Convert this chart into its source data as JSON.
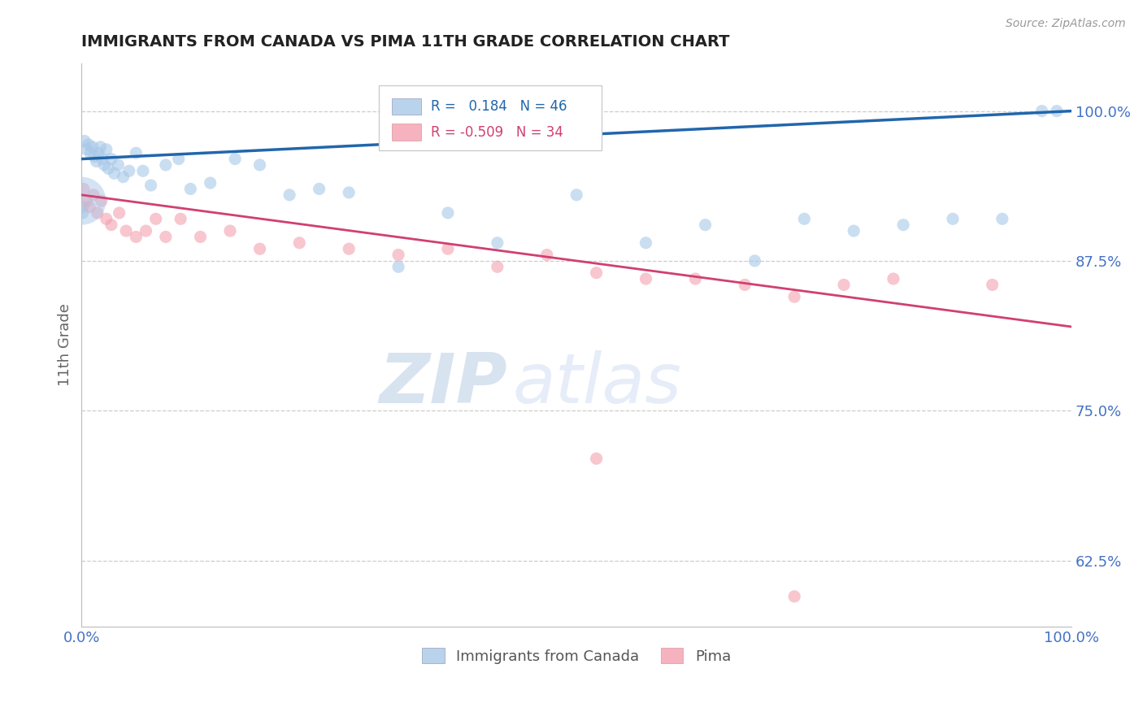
{
  "title": "IMMIGRANTS FROM CANADA VS PIMA 11TH GRADE CORRELATION CHART",
  "source_text": "Source: ZipAtlas.com",
  "ylabel": "11th Grade",
  "xlim": [
    0.0,
    100.0
  ],
  "ylim": [
    57.0,
    104.0
  ],
  "yticks": [
    62.5,
    75.0,
    87.5,
    100.0
  ],
  "xticks": [
    0.0,
    100.0
  ],
  "xtick_labels": [
    "0.0%",
    "100.0%"
  ],
  "ytick_labels": [
    "62.5%",
    "75.0%",
    "87.5%",
    "100.0%"
  ],
  "blue_R": 0.184,
  "blue_N": 46,
  "pink_R": -0.509,
  "pink_N": 34,
  "legend_label_blue": "Immigrants from Canada",
  "legend_label_pink": "Pima",
  "blue_color": "#a8c8e8",
  "pink_color": "#f4a0b0",
  "blue_line_color": "#2166ac",
  "pink_line_color": "#d04070",
  "blue_scatter": [
    [
      0.3,
      97.5
    ],
    [
      0.5,
      96.8
    ],
    [
      0.7,
      97.2
    ],
    [
      0.9,
      96.5
    ],
    [
      1.1,
      97.0
    ],
    [
      1.3,
      96.2
    ],
    [
      1.5,
      95.8
    ],
    [
      1.7,
      96.5
    ],
    [
      1.9,
      97.0
    ],
    [
      2.1,
      96.0
    ],
    [
      2.3,
      95.5
    ],
    [
      2.5,
      96.8
    ],
    [
      2.7,
      95.2
    ],
    [
      3.0,
      96.0
    ],
    [
      3.3,
      94.8
    ],
    [
      3.7,
      95.5
    ],
    [
      4.2,
      94.5
    ],
    [
      4.8,
      95.0
    ],
    [
      5.5,
      96.5
    ],
    [
      6.2,
      95.0
    ],
    [
      7.0,
      93.8
    ],
    [
      8.5,
      95.5
    ],
    [
      9.8,
      96.0
    ],
    [
      11.0,
      93.5
    ],
    [
      13.0,
      94.0
    ],
    [
      15.5,
      96.0
    ],
    [
      18.0,
      95.5
    ],
    [
      21.0,
      93.0
    ],
    [
      24.0,
      93.5
    ],
    [
      27.0,
      93.2
    ],
    [
      32.0,
      87.0
    ],
    [
      37.0,
      91.5
    ],
    [
      42.0,
      89.0
    ],
    [
      50.0,
      93.0
    ],
    [
      57.0,
      89.0
    ],
    [
      63.0,
      90.5
    ],
    [
      68.0,
      87.5
    ],
    [
      73.0,
      91.0
    ],
    [
      78.0,
      90.0
    ],
    [
      83.0,
      90.5
    ],
    [
      88.0,
      91.0
    ],
    [
      93.0,
      91.0
    ],
    [
      97.0,
      100.0
    ],
    [
      98.5,
      100.0
    ],
    [
      0.1,
      92.0
    ],
    [
      0.1,
      91.5
    ]
  ],
  "pink_scatter": [
    [
      0.2,
      93.5
    ],
    [
      0.5,
      92.5
    ],
    [
      0.8,
      92.0
    ],
    [
      1.2,
      93.0
    ],
    [
      1.6,
      91.5
    ],
    [
      2.0,
      92.5
    ],
    [
      2.5,
      91.0
    ],
    [
      3.0,
      90.5
    ],
    [
      3.8,
      91.5
    ],
    [
      4.5,
      90.0
    ],
    [
      5.5,
      89.5
    ],
    [
      6.5,
      90.0
    ],
    [
      7.5,
      91.0
    ],
    [
      8.5,
      89.5
    ],
    [
      10.0,
      91.0
    ],
    [
      12.0,
      89.5
    ],
    [
      15.0,
      90.0
    ],
    [
      18.0,
      88.5
    ],
    [
      22.0,
      89.0
    ],
    [
      27.0,
      88.5
    ],
    [
      32.0,
      88.0
    ],
    [
      37.0,
      88.5
    ],
    [
      42.0,
      87.0
    ],
    [
      47.0,
      88.0
    ],
    [
      52.0,
      86.5
    ],
    [
      57.0,
      86.0
    ],
    [
      62.0,
      86.0
    ],
    [
      67.0,
      85.5
    ],
    [
      72.0,
      84.5
    ],
    [
      77.0,
      85.5
    ],
    [
      82.0,
      86.0
    ],
    [
      92.0,
      85.5
    ],
    [
      72.0,
      59.5
    ],
    [
      52.0,
      71.0
    ]
  ],
  "watermark_zip": "ZIP",
  "watermark_atlas": "atlas",
  "background_color": "#ffffff",
  "grid_color": "#cccccc",
  "title_color": "#222222",
  "axis_label_color": "#666666",
  "tick_color": "#4472c4",
  "source_color": "#999999"
}
